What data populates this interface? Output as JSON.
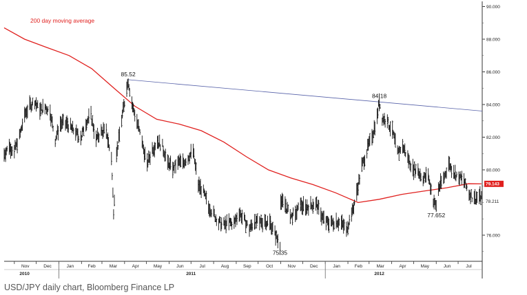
{
  "caption": "USD/JPY daily chart, Bloomberg Finance LP",
  "colors": {
    "moving_average": "#e0201e",
    "trendline": "#5560a8",
    "price": "#111111",
    "badge": "#e0201e"
  },
  "chart_data": {
    "type": "line",
    "title": "",
    "xlabel": "",
    "ylabel": "",
    "ylim": [
      74.4,
      90.4
    ],
    "y_ticks": [
      "90.000",
      "88.000",
      "86.000",
      "84.000",
      "82.000",
      "80.000",
      "76.000"
    ],
    "y_tick_values": [
      90,
      88,
      86,
      84,
      82,
      80,
      76
    ],
    "x_range": [
      "2010-10-18",
      "2012-08-03"
    ],
    "month_labels": [
      "Nov",
      "Dec",
      "Jan",
      "Feb",
      "Mar",
      "Apr",
      "May",
      "Jun",
      "Jul",
      "Aug",
      "Sep",
      "Oct",
      "Nov",
      "Dec",
      "Jan",
      "Feb",
      "Mar",
      "Apr",
      "May",
      "Jun",
      "Jul"
    ],
    "month_dates": [
      "2010-11-01",
      "2010-12-01",
      "2011-01-01",
      "2011-02-01",
      "2011-03-01",
      "2011-04-01",
      "2011-05-01",
      "2011-06-01",
      "2011-07-01",
      "2011-08-01",
      "2011-09-01",
      "2011-10-01",
      "2011-11-01",
      "2011-12-01",
      "2012-01-01",
      "2012-02-01",
      "2012-03-01",
      "2012-04-01",
      "2012-05-01",
      "2012-06-01",
      "2012-07-01"
    ],
    "year_labels": [
      "2010",
      "2011",
      "2012"
    ],
    "year_dates": [
      "2010-11-15",
      "2011-07-01",
      "2012-03-15"
    ],
    "year_separators": [
      "2011-01-01",
      "2012-01-01"
    ],
    "legend": {
      "label": "200 day moving average",
      "placement": "top-left"
    },
    "series": [
      {
        "name": "USD/JPY",
        "style": "daily bars",
        "points": [
          [
            "2010-10-18",
            81.0
          ],
          [
            "2010-10-25",
            81.4
          ],
          [
            "2010-11-01",
            81.2
          ],
          [
            "2010-11-08",
            82.0
          ],
          [
            "2010-11-15",
            83.4
          ],
          [
            "2010-11-22",
            83.9
          ],
          [
            "2010-11-29",
            84.2
          ],
          [
            "2010-12-06",
            83.6
          ],
          [
            "2010-12-13",
            83.9
          ],
          [
            "2010-12-20",
            83.5
          ],
          [
            "2010-12-27",
            81.9
          ],
          [
            "2011-01-03",
            82.8
          ],
          [
            "2011-01-10",
            82.9
          ],
          [
            "2011-01-17",
            82.6
          ],
          [
            "2011-01-24",
            82.3
          ],
          [
            "2011-01-31",
            81.9
          ],
          [
            "2011-02-07",
            82.9
          ],
          [
            "2011-02-14",
            83.3
          ],
          [
            "2011-02-21",
            81.9
          ],
          [
            "2011-02-28",
            82.3
          ],
          [
            "2011-03-07",
            82.4
          ],
          [
            "2011-03-14",
            80.6
          ],
          [
            "2011-03-17",
            77.5
          ],
          [
            "2011-03-21",
            80.9
          ],
          [
            "2011-03-28",
            83.1
          ],
          [
            "2011-04-04",
            84.9
          ],
          [
            "2011-04-06",
            85.52
          ],
          [
            "2011-04-11",
            84.0
          ],
          [
            "2011-04-18",
            83.0
          ],
          [
            "2011-04-25",
            81.6
          ],
          [
            "2011-05-02",
            80.4
          ],
          [
            "2011-05-09",
            81.2
          ],
          [
            "2011-05-16",
            81.8
          ],
          [
            "2011-05-23",
            81.4
          ],
          [
            "2011-05-30",
            80.5
          ],
          [
            "2011-06-06",
            80.0
          ],
          [
            "2011-06-13",
            80.5
          ],
          [
            "2011-06-20",
            80.4
          ],
          [
            "2011-06-27",
            80.8
          ],
          [
            "2011-07-04",
            81.1
          ],
          [
            "2011-07-11",
            79.1
          ],
          [
            "2011-07-18",
            78.6
          ],
          [
            "2011-07-25",
            77.8
          ],
          [
            "2011-08-01",
            77.3
          ],
          [
            "2011-08-08",
            76.8
          ],
          [
            "2011-08-15",
            76.6
          ],
          [
            "2011-08-22",
            76.8
          ],
          [
            "2011-08-29",
            76.7
          ],
          [
            "2011-09-05",
            77.4
          ],
          [
            "2011-09-12",
            76.9
          ],
          [
            "2011-09-19",
            76.4
          ],
          [
            "2011-09-26",
            76.8
          ],
          [
            "2011-10-03",
            76.8
          ],
          [
            "2011-10-10",
            76.8
          ],
          [
            "2011-10-17",
            76.8
          ],
          [
            "2011-10-24",
            76.1
          ],
          [
            "2011-10-31",
            75.35
          ],
          [
            "2011-11-01",
            78.0
          ],
          [
            "2011-11-07",
            77.9
          ],
          [
            "2011-11-14",
            77.1
          ],
          [
            "2011-11-21",
            77.3
          ],
          [
            "2011-11-28",
            77.8
          ],
          [
            "2011-12-05",
            77.7
          ],
          [
            "2011-12-12",
            77.8
          ],
          [
            "2011-12-19",
            78.0
          ],
          [
            "2011-12-26",
            77.2
          ],
          [
            "2012-01-02",
            76.8
          ],
          [
            "2012-01-09",
            76.7
          ],
          [
            "2012-01-16",
            76.9
          ],
          [
            "2012-01-23",
            76.7
          ],
          [
            "2012-01-30",
            76.4
          ],
          [
            "2012-02-06",
            77.2
          ],
          [
            "2012-02-13",
            78.6
          ],
          [
            "2012-02-20",
            80.2
          ],
          [
            "2012-02-27",
            81.2
          ],
          [
            "2012-03-05",
            82.0
          ],
          [
            "2012-03-12",
            83.3
          ],
          [
            "2012-03-15",
            84.18
          ],
          [
            "2012-03-19",
            83.2
          ],
          [
            "2012-03-26",
            82.9
          ],
          [
            "2012-04-02",
            82.4
          ],
          [
            "2012-04-09",
            81.0
          ],
          [
            "2012-04-16",
            81.5
          ],
          [
            "2012-04-23",
            80.7
          ],
          [
            "2012-04-30",
            80.1
          ],
          [
            "2012-05-07",
            79.9
          ],
          [
            "2012-05-14",
            79.5
          ],
          [
            "2012-05-21",
            79.6
          ],
          [
            "2012-05-28",
            78.2
          ],
          [
            "2012-06-01",
            77.652
          ],
          [
            "2012-06-04",
            78.9
          ],
          [
            "2012-06-11",
            79.4
          ],
          [
            "2012-06-18",
            80.4
          ],
          [
            "2012-06-25",
            79.8
          ],
          [
            "2012-07-02",
            79.6
          ],
          [
            "2012-07-09",
            79.3
          ],
          [
            "2012-07-16",
            78.6
          ],
          [
            "2012-07-23",
            78.2
          ],
          [
            "2012-07-30",
            78.4
          ],
          [
            "2012-08-02",
            78.2
          ]
        ]
      },
      {
        "name": "200 day moving average",
        "style": "line",
        "points": [
          [
            "2010-10-18",
            88.7
          ],
          [
            "2010-11-15",
            88.0
          ],
          [
            "2010-12-15",
            87.5
          ],
          [
            "2011-01-15",
            87.0
          ],
          [
            "2011-02-15",
            86.2
          ],
          [
            "2011-03-15",
            85.1
          ],
          [
            "2011-04-15",
            83.9
          ],
          [
            "2011-05-15",
            83.1
          ],
          [
            "2011-06-15",
            82.8
          ],
          [
            "2011-07-15",
            82.4
          ],
          [
            "2011-08-15",
            81.7
          ],
          [
            "2011-09-15",
            80.8
          ],
          [
            "2011-10-15",
            80.0
          ],
          [
            "2011-11-15",
            79.5
          ],
          [
            "2011-12-15",
            79.1
          ],
          [
            "2012-01-15",
            78.6
          ],
          [
            "2012-02-15",
            78.0
          ],
          [
            "2012-03-15",
            78.2
          ],
          [
            "2012-04-15",
            78.5
          ],
          [
            "2012-05-15",
            78.7
          ],
          [
            "2012-06-15",
            78.9
          ],
          [
            "2012-07-15",
            79.15
          ],
          [
            "2012-08-02",
            79.143
          ]
        ]
      },
      {
        "name": "trendline",
        "style": "line",
        "points": [
          [
            "2011-04-06",
            85.52
          ],
          [
            "2012-08-03",
            83.6
          ]
        ]
      }
    ],
    "annotations": [
      {
        "text": "85.52",
        "x": "2011-04-06",
        "y": 85.52,
        "position": "above"
      },
      {
        "text": "84.18",
        "x": "2012-03-15",
        "y": 84.18,
        "position": "above"
      },
      {
        "text": "75.35",
        "x": "2011-10-31",
        "y": 75.35,
        "position": "below"
      },
      {
        "text": "77.652",
        "x": "2012-06-01",
        "y": 77.652,
        "position": "below"
      }
    ],
    "right_labels": [
      {
        "text": "79.143",
        "y": 79.143,
        "style": "badge"
      },
      {
        "text": "78.211",
        "y": 78.211,
        "style": "plain"
      }
    ]
  }
}
